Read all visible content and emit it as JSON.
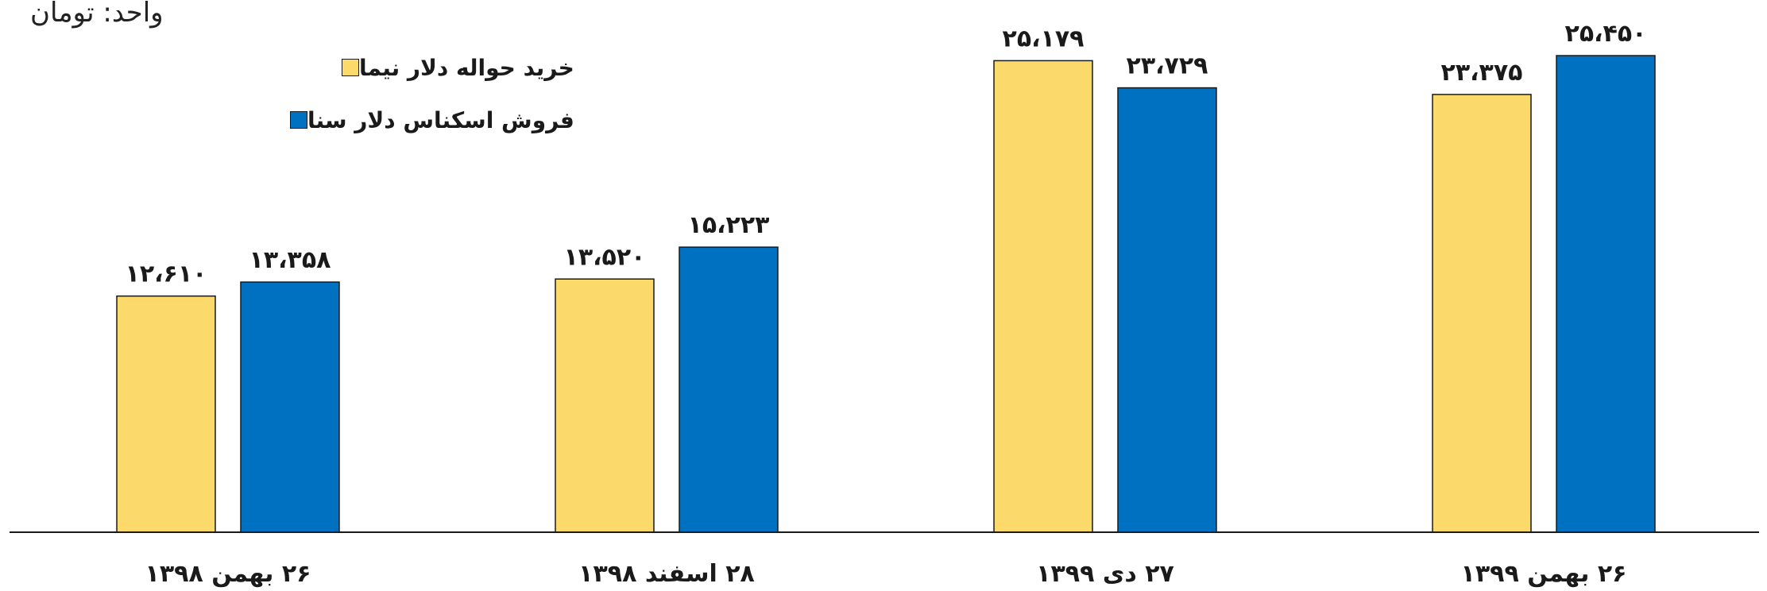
{
  "unit_label": "واحد: تومان",
  "colors": {
    "nima": "#FCD96B",
    "sana": "#0070C0",
    "axis": "#1a1a1a"
  },
  "chart_data": {
    "type": "bar",
    "title": "",
    "xlabel": "",
    "ylabel": "",
    "ylim": [
      0,
      26000
    ],
    "grid": false,
    "legend_placement": "top-left",
    "categories": [
      "۲۶ بهمن ۱۳۹۸",
      "۲۸ اسفند ۱۳۹۸",
      "۲۷ دی ۱۳۹۹",
      "۲۶ بهمن ۱۳۹۹"
    ],
    "series": [
      {
        "name": "خرید حواله دلار نیما",
        "color": "#FCD96B",
        "values": [
          12610,
          13520,
          25179,
          23375
        ],
        "labels": [
          "۱۲،۶۱۰",
          "۱۳،۵۲۰",
          "۲۵،۱۷۹",
          "۲۳،۳۷۵"
        ]
      },
      {
        "name": "فروش اسکناس دلار سنا",
        "color": "#0070C0",
        "values": [
          13358,
          15223,
          23729,
          25450
        ],
        "labels": [
          "۱۳،۳۵۸",
          "۱۵،۲۲۳",
          "۲۳،۷۲۹",
          "۲۵،۴۵۰"
        ]
      }
    ]
  }
}
